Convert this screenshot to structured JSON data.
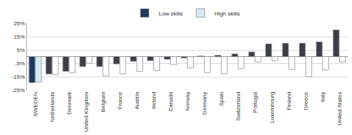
{
  "chart_data": {
    "type": "bar",
    "categories": [
      "SWEDEN",
      "Netherlands",
      "Denmark",
      "United Kingdom",
      "Belgium",
      "France",
      "Austria",
      "Ireland",
      "Canada",
      "Norway",
      "Germany",
      "Spain",
      "Switzerland",
      "Portugal",
      "Luxembourg",
      "Finland",
      "Greece",
      "Italy",
      "United States"
    ],
    "series": [
      {
        "name": "Low skills",
        "color": "#3b3f45",
        "colors": [
          "#1d3a5c",
          "#3b3f45",
          "#3b3f45",
          "#3b3f45",
          "#3b3f45",
          "#3b3f45",
          "#3b3f45",
          "#3b3f45",
          "#3b3f45",
          "#3b3f45",
          "#3b3f45",
          "#3b3f45",
          "#3b3f45",
          "#3b3f45",
          "#3b3f45",
          "#3b3f45",
          "#3b3f45",
          "#3b3f45",
          "#3b3f45"
        ],
        "values": [
          -19.5,
          -13,
          -11,
          -7.5,
          -7.5,
          -5.5,
          -3.5,
          -3,
          -2,
          -1,
          0.5,
          1,
          2,
          3.5,
          9.5,
          10,
          10,
          11,
          20
        ]
      },
      {
        "name": "High skills",
        "color": "#ffffff",
        "colors": [
          "#d6eaf5",
          "#ffffff",
          "#ffffff",
          "#ffffff",
          "#ffffff",
          "#ffffff",
          "#ffffff",
          "#ffffff",
          "#ffffff",
          "#ffffff",
          "#ffffff",
          "#ffffff",
          "#ffffff",
          "#ffffff",
          "#ffffff",
          "#ffffff",
          "#ffffff",
          "#ffffff",
          "#ffffff"
        ],
        "values": [
          -19,
          -13.5,
          -12,
          -5,
          -14.5,
          -13,
          -11,
          -10.5,
          -6,
          -8.5,
          -12,
          -13,
          -9,
          -4,
          -3,
          -9.5,
          -15,
          -10,
          -4
        ]
      }
    ],
    "ylim": [
      -25,
      25
    ],
    "yticks": [
      {
        "value": -25,
        "label": "-25%"
      },
      {
        "value": -15,
        "label": "-15%"
      },
      {
        "value": -5,
        "label": "-5%"
      },
      {
        "value": 5,
        "label": "5%"
      },
      {
        "value": 15,
        "label": "15%"
      },
      {
        "value": 25,
        "label": "25%"
      }
    ],
    "grid": true,
    "legend": "top"
  }
}
